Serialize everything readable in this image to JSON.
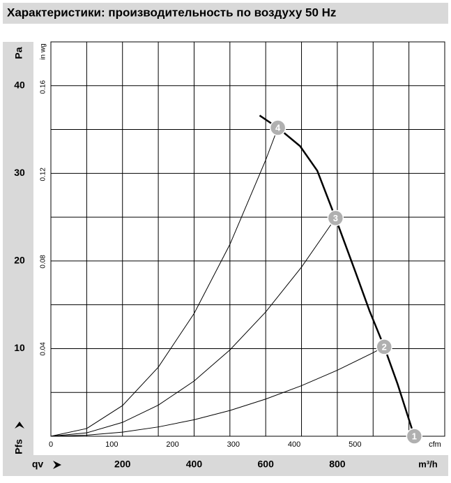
{
  "chart_data": {
    "type": "line",
    "title": "Характеристики: производительность по воздуху 50 Hz",
    "xlabel": "m³/h",
    "x2label": "cfm",
    "ylabel": "Pa",
    "y2label": "in wg",
    "xsymbol": "qv",
    "ysymbol": "Pfs",
    "xlim": [
      0,
      1100
    ],
    "xticks": [
      200,
      400,
      600,
      800
    ],
    "x2lim": [
      0,
      647.5
    ],
    "x2ticks": [
      0,
      100,
      200,
      300,
      400,
      500
    ],
    "ylim": [
      0,
      45
    ],
    "yticks": [
      10,
      20,
      30,
      40
    ],
    "y2lim": [
      0,
      0.1807
    ],
    "y2ticks": [
      0.04,
      0.08,
      0.12,
      0.16
    ],
    "grid": true,
    "xgrid": [
      100,
      200,
      300,
      400,
      500,
      600,
      700,
      800,
      900,
      1000
    ],
    "ygrid": [
      5,
      10,
      15,
      20,
      25,
      30,
      35,
      40
    ],
    "series": [
      {
        "color": "#000000",
        "width": 2.5,
        "x": [
          583,
          634,
          696,
          744,
          795,
          851,
          890,
          931,
          968,
          1015
        ],
        "values": [
          36.6,
          35.2,
          33.1,
          30.3,
          24.9,
          18.7,
          14.3,
          10.2,
          6.0,
          0
        ]
      },
      {
        "color": "#000000",
        "width": 1,
        "x": [
          0,
          100,
          200,
          300,
          400,
          500,
          600,
          634
        ],
        "values": [
          0,
          0.88,
          3.5,
          7.88,
          14.01,
          21.89,
          31.52,
          35.2
        ]
      },
      {
        "color": "#000000",
        "width": 1,
        "x": [
          0,
          100,
          200,
          300,
          400,
          500,
          600,
          700,
          795
        ],
        "values": [
          0,
          0.39,
          1.58,
          3.55,
          6.3,
          9.85,
          14.18,
          19.3,
          24.9
        ]
      },
      {
        "color": "#000000",
        "width": 1,
        "x": [
          0,
          100,
          200,
          300,
          400,
          500,
          600,
          700,
          800,
          900,
          931
        ],
        "values": [
          0,
          0.12,
          0.47,
          1.06,
          1.88,
          2.94,
          4.24,
          5.77,
          7.53,
          9.53,
          10.2
        ]
      }
    ],
    "operating_points": {
      "color": "#b0b0b0",
      "labels": [
        "1",
        "2",
        "3",
        "4"
      ],
      "x": [
        1015,
        931,
        795,
        634
      ],
      "values": [
        0,
        10.2,
        24.9,
        35.2
      ]
    }
  }
}
